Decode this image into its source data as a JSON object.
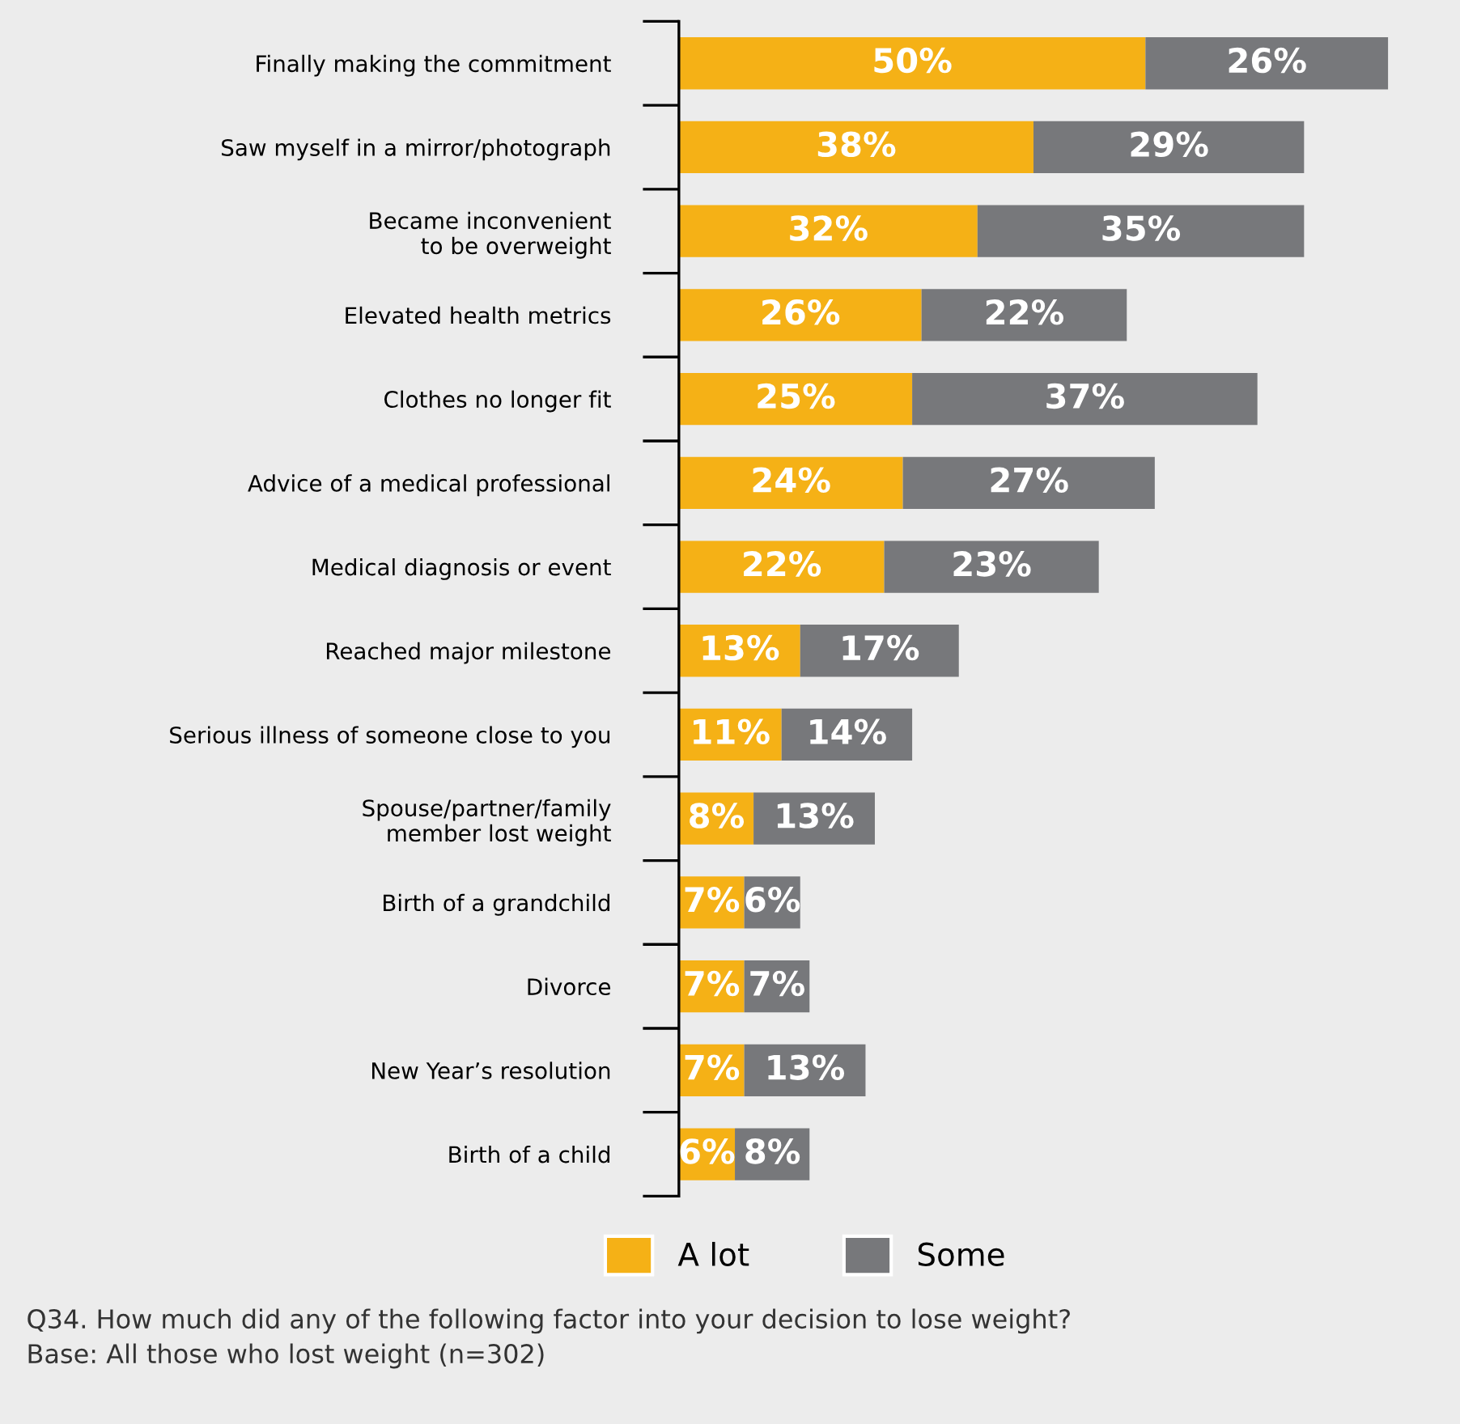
{
  "chart_data": {
    "type": "bar",
    "orientation": "horizontal",
    "stacked": true,
    "tick_labels": "y",
    "grid": false,
    "legend": "bottom",
    "categories": [
      "Finally making the commitment",
      "Saw myself in a mirror/photograph",
      "Became inconvenient\nto be overweight",
      "Elevated health metrics",
      "Clothes no longer fit",
      "Advice of a medical professional",
      "Medical diagnosis or event",
      "Reached major milestone",
      "Serious illness of someone close to you",
      "Spouse/partner/family\nmember lost weight",
      "Birth of a grandchild",
      "Divorce",
      "New Year’s resolution",
      "Birth of a child"
    ],
    "series": [
      {
        "name": "A lot",
        "color": "#f5b116",
        "values": [
          50,
          38,
          32,
          26,
          25,
          24,
          22,
          13,
          11,
          8,
          7,
          7,
          7,
          6
        ],
        "value_labels": [
          "50%",
          "38%",
          "32%",
          "26%",
          "25%",
          "24%",
          "22%",
          "13%",
          "11%",
          "8%",
          "7%",
          "7%",
          "7%",
          "6%"
        ]
      },
      {
        "name": "Some",
        "color": "#77787b",
        "values": [
          26,
          29,
          35,
          22,
          37,
          27,
          23,
          17,
          14,
          13,
          6,
          7,
          13,
          8
        ],
        "value_labels": [
          "26%",
          "29%",
          "35%",
          "22%",
          "37%",
          "27%",
          "23%",
          "17%",
          "14%",
          "13%",
          "6%",
          "7%",
          "13%",
          "8%"
        ]
      }
    ],
    "annotations": [
      "Q34. How much did any of the following factor into your decision to lose weight?\nBase: All those who lost weight (n=302)"
    ]
  }
}
